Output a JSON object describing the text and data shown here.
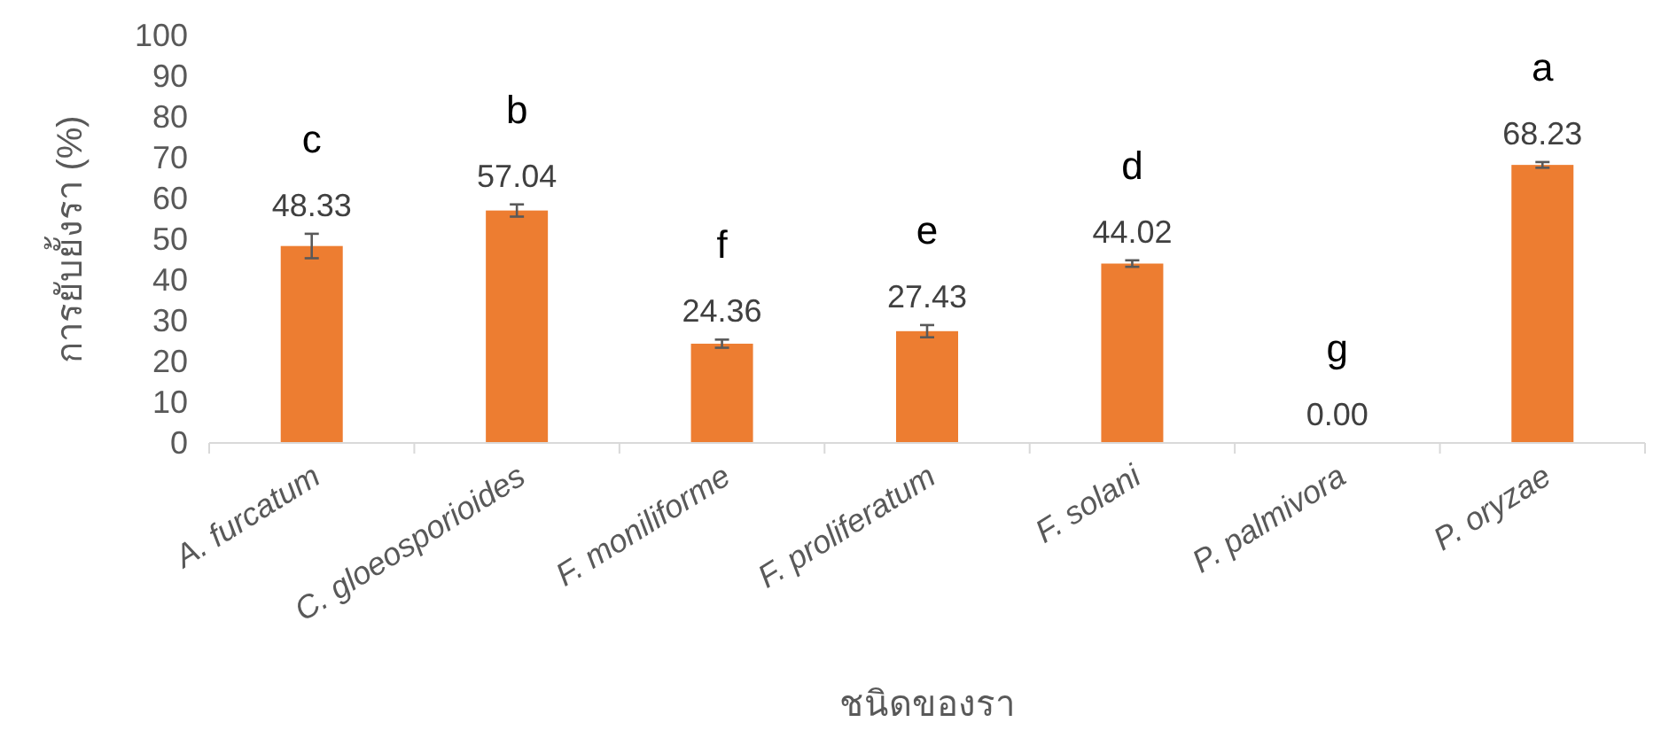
{
  "chart_data": {
    "type": "bar",
    "xlabel": "ชนิดของรา",
    "ylabel": "การยับยั้งรา (%)",
    "categories": [
      "A. furcatum",
      "C. gloeosporioides",
      "F. moniliforme",
      "F. proliferatum",
      "F. solani",
      "P. palmivora",
      "P. oryzae"
    ],
    "values": [
      48.33,
      57.04,
      24.36,
      27.43,
      44.02,
      0,
      68.23
    ],
    "errors": [
      3,
      1.5,
      1,
      1.5,
      0.8,
      null,
      0.7
    ],
    "value_labels": [
      "48.33",
      "57.04",
      "24.36",
      "27.43",
      "44.02",
      "0.00",
      "68.23"
    ],
    "color": "#ed7d31",
    "ylim": [
      0,
      100
    ],
    "yticks": [
      0,
      10,
      20,
      30,
      40,
      50,
      60,
      70,
      80,
      90,
      100
    ],
    "annotations": [
      "c",
      "b",
      "f",
      "e",
      "d",
      "g",
      "a"
    ]
  }
}
